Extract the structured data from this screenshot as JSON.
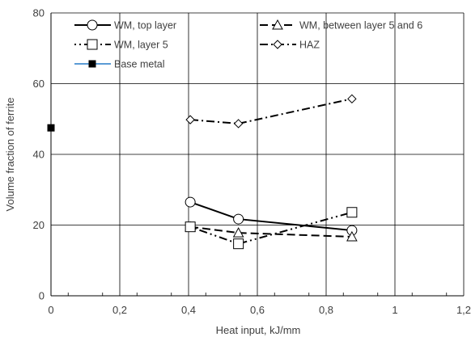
{
  "chart_data": {
    "type": "line",
    "xlabel": "Heat input, kJ/mm",
    "ylabel": "Volume fraction of ferrite",
    "xlim": [
      0,
      1.2
    ],
    "ylim": [
      0,
      80
    ],
    "grid": true,
    "legend_placement": "top",
    "x_ticks": [
      "0",
      "0,2",
      "0,4",
      "0,6",
      "0,8",
      "1",
      "1,2"
    ],
    "y_ticks": [
      "0",
      "20",
      "40",
      "60",
      "80"
    ],
    "series": [
      {
        "name": "WM, top layer",
        "marker": "circle",
        "line": "solid",
        "color": "#000000",
        "x": [
          0.405,
          0.545,
          0.875
        ],
        "y": [
          26.5,
          21.7,
          18.5
        ]
      },
      {
        "name": "WM, between layer 5 and 6",
        "marker": "triangle",
        "line": "dashed",
        "color": "#000000",
        "x": [
          0.405,
          0.545,
          0.875
        ],
        "y": [
          19.5,
          17.8,
          16.7
        ]
      },
      {
        "name": "WM, layer 5",
        "marker": "square",
        "line": "dashdotdot",
        "color": "#000000",
        "x": [
          0.405,
          0.545,
          0.875
        ],
        "y": [
          19.5,
          14.7,
          23.6
        ]
      },
      {
        "name": "HAZ",
        "marker": "diamond",
        "line": "dashdot",
        "color": "#000000",
        "x": [
          0.405,
          0.545,
          0.875
        ],
        "y": [
          49.8,
          48.7,
          55.7
        ]
      },
      {
        "name": "Base metal",
        "marker": "filled-square",
        "line": "solid",
        "color": "#5b9bd5",
        "x": [
          0.0
        ],
        "y": [
          47.5
        ]
      }
    ]
  }
}
